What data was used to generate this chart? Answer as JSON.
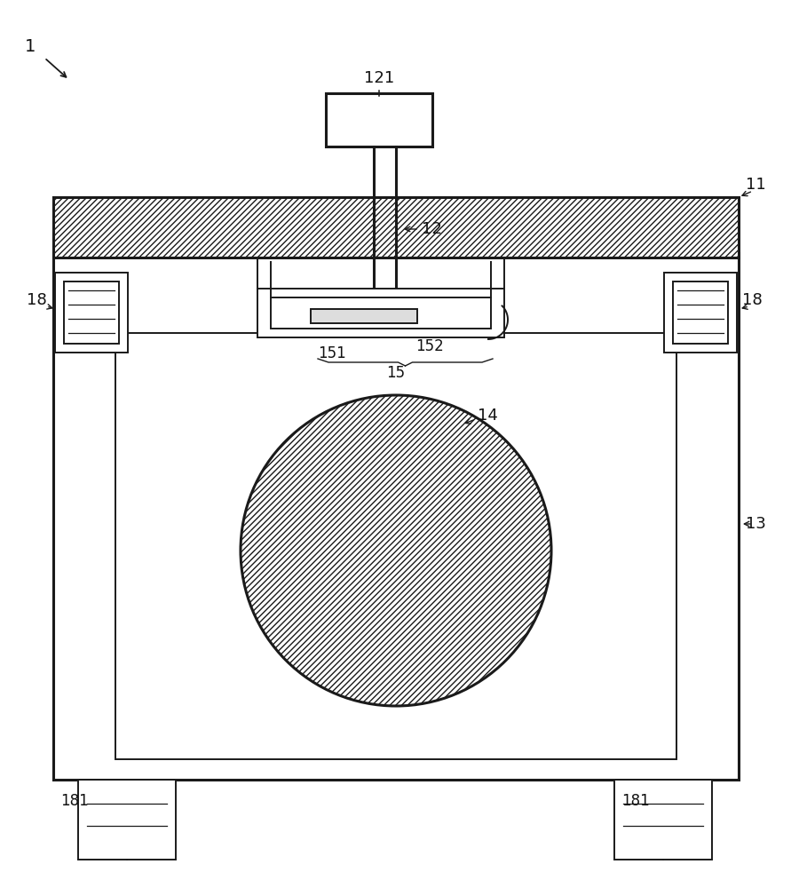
{
  "bg_color": "#ffffff",
  "line_color": "#1a1a1a",
  "figsize": [
    8.91,
    10.0
  ],
  "dpi": 100,
  "label_fontsize": 13,
  "label_color": "#111111"
}
